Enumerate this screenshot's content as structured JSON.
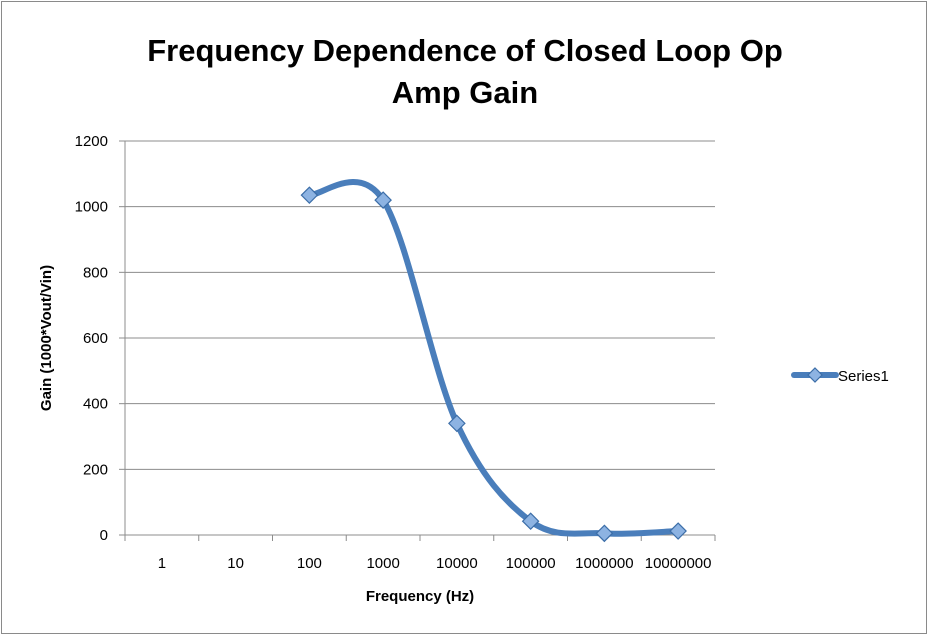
{
  "chart_data": {
    "type": "line",
    "title_lines": [
      "Frequency Dependence of Closed Loop Op",
      "Amp Gain"
    ],
    "xlabel": "Frequency (Hz)",
    "ylabel": "Gain (1000*Vout/Vin)",
    "x_tick_labels": [
      "1",
      "10",
      "100",
      "1000",
      "10000",
      "100000",
      "1000000",
      "10000000"
    ],
    "y_ticks": [
      0,
      200,
      400,
      600,
      800,
      1000,
      1200
    ],
    "ylim": [
      0,
      1200
    ],
    "x_scale": "log",
    "grid": "horizontal",
    "legend_position": "right",
    "series": [
      {
        "name": "Series1",
        "color": "#4a7ebb",
        "x": [
          100,
          1000,
          10000,
          100000,
          1000000,
          10000000
        ],
        "y": [
          1035,
          1020,
          340,
          42,
          5,
          12
        ]
      }
    ]
  }
}
